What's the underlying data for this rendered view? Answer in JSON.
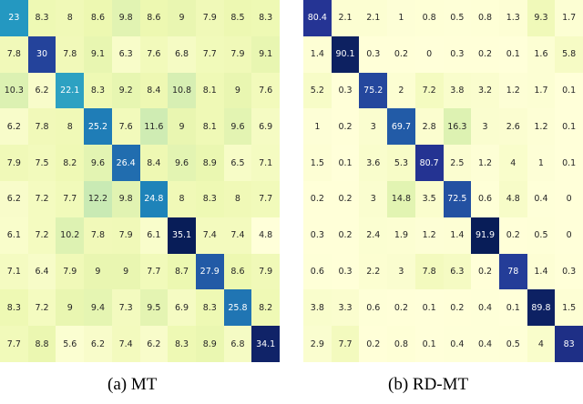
{
  "chart_data": [
    {
      "type": "heatmap",
      "title": "(a) MT",
      "caption": "(a) MT",
      "colormap": "YlGnBu",
      "grid": false,
      "rows": 10,
      "cols": 10,
      "values": [
        [
          23,
          8.3,
          8,
          8.6,
          9.8,
          8.6,
          9,
          7.9,
          8.5,
          8.3
        ],
        [
          7.8,
          30,
          7.8,
          9.1,
          6.3,
          7.6,
          6.8,
          7.7,
          7.9,
          9.1
        ],
        [
          10.3,
          6.2,
          22.1,
          8.3,
          9.2,
          8.4,
          10.8,
          8.1,
          9,
          7.6
        ],
        [
          6.2,
          7.8,
          8,
          25.2,
          7.6,
          11.6,
          9,
          8.1,
          9.6,
          6.9
        ],
        [
          7.9,
          7.5,
          8.2,
          9.6,
          26.4,
          8.4,
          9.6,
          8.9,
          6.5,
          7.1
        ],
        [
          6.2,
          7.2,
          7.7,
          12.2,
          9.8,
          24.8,
          8,
          8.3,
          8,
          7.7
        ],
        [
          6.1,
          7.2,
          10.2,
          7.8,
          7.9,
          6.1,
          35.1,
          7.4,
          7.4,
          4.8
        ],
        [
          7.1,
          6.4,
          7.9,
          9,
          9,
          7.7,
          8.7,
          27.9,
          8.6,
          7.9
        ],
        [
          8.3,
          7.2,
          9,
          9.4,
          7.3,
          9.5,
          6.9,
          8.3,
          25.8,
          8.2
        ],
        [
          7.7,
          8.8,
          5.6,
          6.2,
          7.4,
          6.2,
          8.3,
          8.9,
          6.8,
          34.1
        ]
      ]
    },
    {
      "type": "heatmap",
      "title": "(b) RD-MT",
      "caption": "(b) RD-MT",
      "colormap": "YlGnBu",
      "grid": false,
      "rows": 10,
      "cols": 10,
      "values": [
        [
          80.4,
          2.1,
          2.1,
          1,
          0.8,
          0.5,
          0.8,
          1.3,
          9.3,
          1.7
        ],
        [
          1.4,
          90.1,
          0.3,
          0.2,
          0,
          0.3,
          0.2,
          0.1,
          1.6,
          5.8
        ],
        [
          5.2,
          0.3,
          75.2,
          2,
          7.2,
          3.8,
          3.2,
          1.2,
          1.7,
          0.1
        ],
        [
          1,
          0.2,
          3,
          69.7,
          2.8,
          16.3,
          3,
          2.6,
          1.2,
          0.1
        ],
        [
          1.5,
          0.1,
          3.6,
          5.3,
          80.7,
          2.5,
          1.2,
          4,
          1,
          0.1
        ],
        [
          0.2,
          0.2,
          3,
          14.8,
          3.5,
          72.5,
          0.6,
          4.8,
          0.4,
          0
        ],
        [
          0.3,
          0.2,
          2.4,
          1.9,
          1.2,
          1.4,
          91.9,
          0.2,
          0.5,
          0
        ],
        [
          0.6,
          0.3,
          2.2,
          3,
          7.8,
          6.3,
          0.2,
          78,
          1.4,
          0.3
        ],
        [
          3.8,
          3.3,
          0.6,
          0.2,
          0.1,
          0.2,
          0.4,
          0.1,
          89.8,
          1.5
        ],
        [
          2.9,
          7.7,
          0.2,
          0.8,
          0.1,
          0.4,
          0.4,
          0.5,
          4,
          83
        ]
      ]
    }
  ],
  "captions": {
    "a": "(a) MT",
    "b": "(b) RD-MT"
  }
}
